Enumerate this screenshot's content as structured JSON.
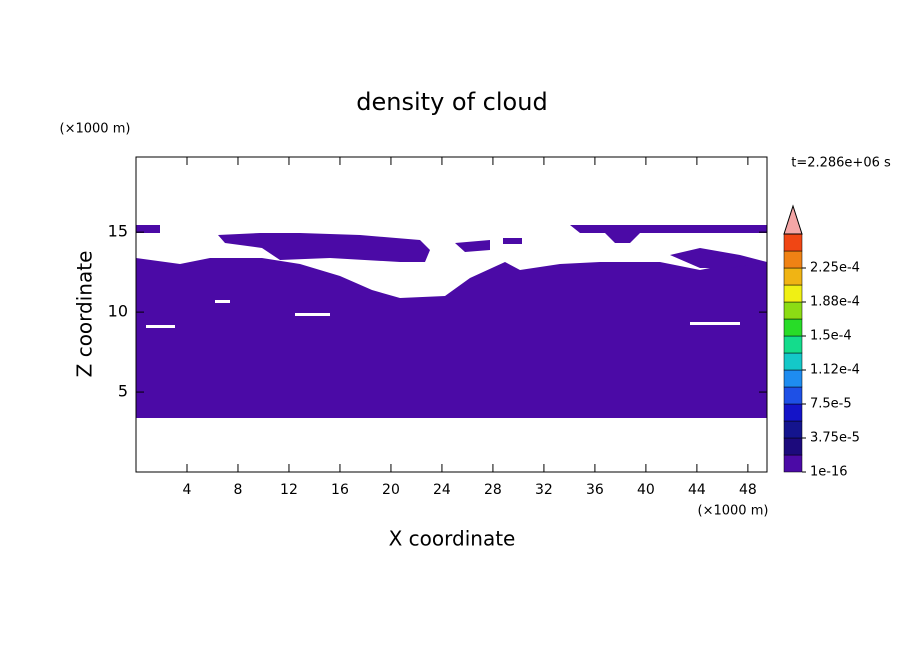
{
  "chart_data": {
    "type": "contour",
    "title": "density of cloud",
    "xlabel": "X coordinate",
    "ylabel": "Z coordinate",
    "xunit": "(×1000 m)",
    "yunit": "(×1000 m)",
    "annotation": "t=2.286e+06 s",
    "xlim": [
      0,
      49.5
    ],
    "ylim": [
      0,
      19.7
    ],
    "xticks": [
      4,
      8,
      12,
      16,
      20,
      24,
      28,
      32,
      36,
      40,
      44,
      48
    ],
    "yticks": [
      5,
      10,
      15
    ],
    "colorbar": {
      "clim": [
        0,
        0.0002625
      ],
      "ticks": [
        1e-16,
        {
          "value": 3.75e-05,
          "label": "3.75e-5"
        },
        {
          "value": 7.5e-05,
          "label": "7.5e-5"
        },
        {
          "value": 0.0001125,
          "label": "1.12e-4"
        },
        {
          "value": 0.00015,
          "label": "1.5e-4"
        },
        {
          "value": 0.0001875,
          "label": "1.88e-4"
        },
        {
          "value": 0.000225,
          "label": "2.25e-4"
        }
      ],
      "colors": [
        "#4b0aa6",
        "#1c0a7c",
        "#14148e",
        "#1414c8",
        "#1e50e6",
        "#1e8cf0",
        "#14c8c8",
        "#14dc8c",
        "#28dc28",
        "#8cdc14",
        "#f0f014",
        "#f0b414",
        "#f08214",
        "#f04614"
      ],
      "extend_color": "#f4a6a6"
    }
  }
}
